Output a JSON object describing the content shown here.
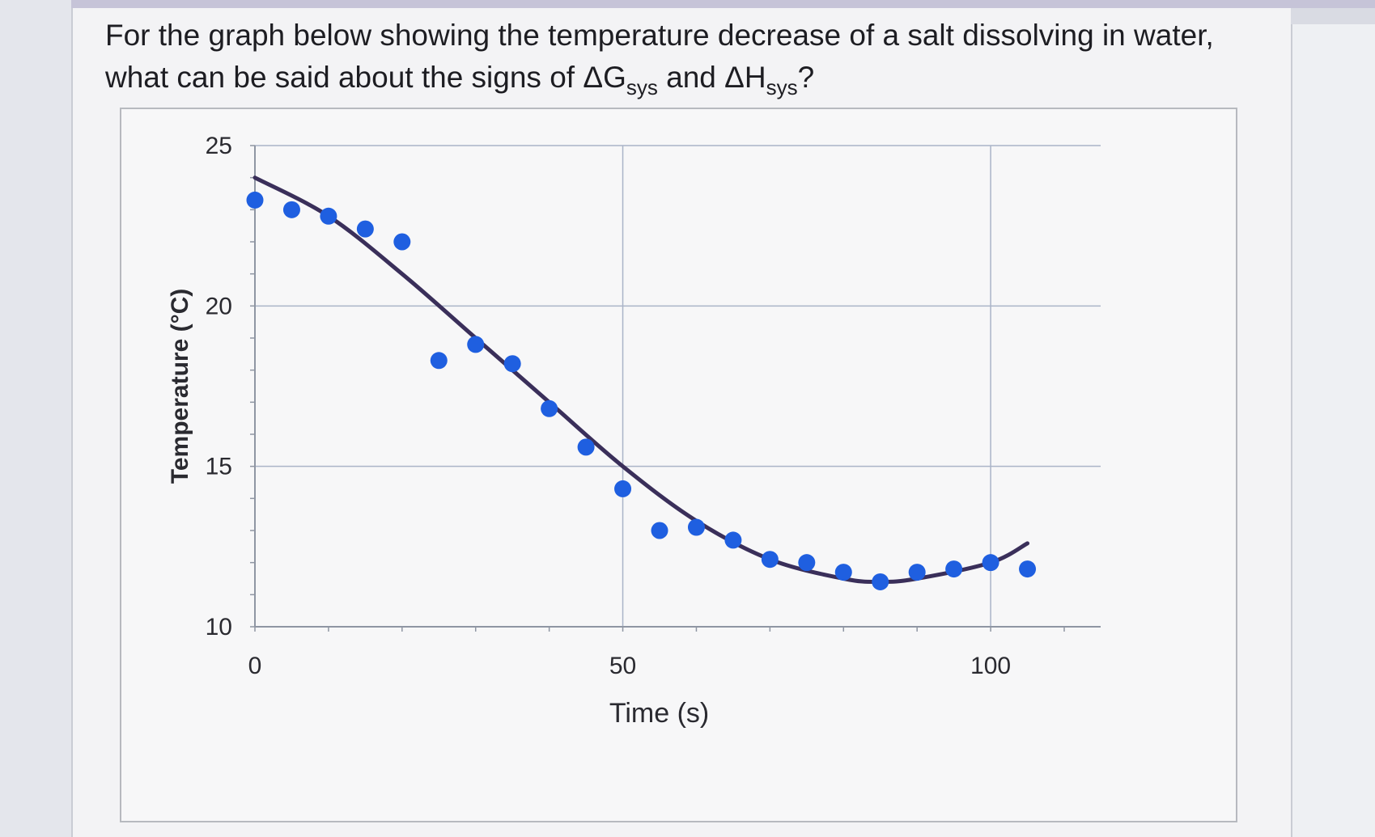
{
  "question": {
    "line1": "For the graph below showing the temperature decrease of a salt dissolving in water,",
    "line2_before_g": "what can be said about the signs of ",
    "delta_symbol": "Δ",
    "g_letter": "G",
    "sys_sub": "sys",
    "and_word": " and ",
    "h_letter": "H",
    "end_mark": "?"
  },
  "chart_data": {
    "type": "scatter",
    "title": "",
    "xlabel": "Time (s)",
    "ylabel": "Temperature (°C)",
    "xlim": [
      0,
      110
    ],
    "ylim": [
      10,
      25
    ],
    "x_ticks": [
      0,
      50,
      100
    ],
    "y_ticks": [
      10,
      15,
      20,
      25
    ],
    "grid": true,
    "series": [
      {
        "kind": "points",
        "color": "#1f5fe0",
        "x": [
          0,
          5,
          10,
          15,
          20,
          25,
          30,
          35,
          40,
          45,
          50,
          55,
          60,
          65,
          70,
          75,
          80,
          85,
          90,
          95,
          100,
          105
        ],
        "y": [
          23.3,
          23.0,
          22.8,
          22.4,
          22.0,
          18.3,
          18.8,
          18.2,
          16.8,
          15.6,
          14.3,
          13.0,
          13.1,
          12.7,
          12.1,
          12.0,
          11.7,
          11.4,
          11.7,
          11.8,
          12.0,
          11.8
        ]
      },
      {
        "kind": "trendline",
        "color": "#3a2f5a",
        "x": [
          0,
          10,
          20,
          30,
          40,
          50,
          60,
          70,
          80,
          85,
          90,
          100,
          105
        ],
        "y": [
          24.0,
          22.8,
          21.0,
          19.0,
          17.0,
          15.0,
          13.3,
          12.1,
          11.5,
          11.4,
          11.5,
          12.0,
          12.6
        ]
      }
    ]
  }
}
